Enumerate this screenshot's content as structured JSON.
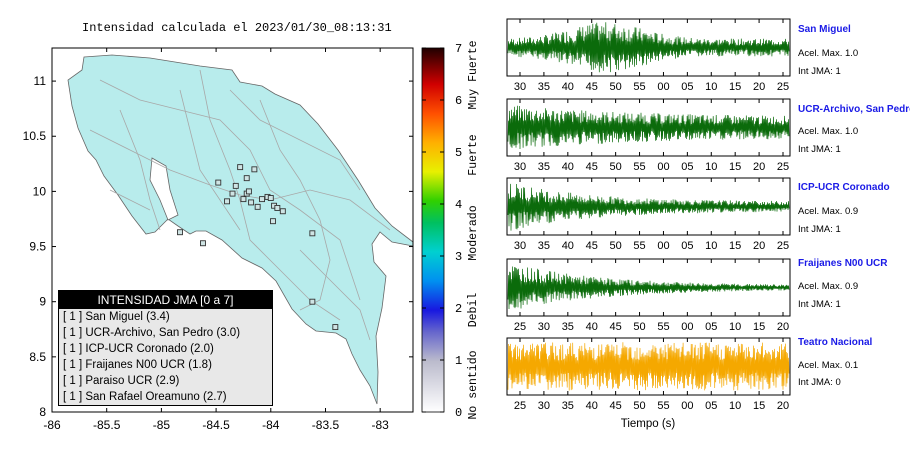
{
  "map": {
    "title": "Intensidad calculada el 2023/01/30_08:13:31",
    "x_ticks": [
      "-86",
      "-85.5",
      "-85",
      "-84.5",
      "-84",
      "-83.5",
      "-83"
    ],
    "y_ticks": [
      "11",
      "10.5",
      "10",
      "9.5",
      "9",
      "8.5",
      "8"
    ],
    "xlim": [
      -86,
      -82.7
    ],
    "ylim": [
      8,
      11.3
    ],
    "land_color": "#b8ecec",
    "station_points": [
      [
        -84.32,
        10.05
      ],
      [
        -84.22,
        9.98
      ],
      [
        -84.08,
        9.93
      ],
      [
        -84.03,
        9.95
      ],
      [
        -84.0,
        9.94
      ],
      [
        -83.97,
        9.87
      ],
      [
        -83.94,
        9.85
      ],
      [
        -83.89,
        9.82
      ],
      [
        -84.12,
        9.86
      ],
      [
        -84.18,
        9.9
      ],
      [
        -84.25,
        9.93
      ],
      [
        -84.4,
        9.91
      ],
      [
        -84.48,
        10.08
      ],
      [
        -84.22,
        10.12
      ],
      [
        -84.15,
        10.2
      ],
      [
        -84.28,
        10.22
      ],
      [
        -83.98,
        9.73
      ],
      [
        -84.62,
        9.53
      ],
      [
        -84.83,
        9.63
      ],
      [
        -83.62,
        9.62
      ],
      [
        -83.62,
        9.0
      ],
      [
        -83.41,
        8.77
      ],
      [
        -84.35,
        9.98
      ],
      [
        -84.2,
        10.0
      ]
    ]
  },
  "colorbar": {
    "ticks": [
      "0",
      "1",
      "2",
      "3",
      "4",
      "5",
      "6",
      "7"
    ],
    "labels": [
      "No sentido",
      "Debil",
      "Moderado",
      "Fuerte",
      "Muy Fuerte"
    ]
  },
  "legend": {
    "title": "INTENSIDAD JMA [0 a 7]",
    "items": [
      "[ 1 ] San Miguel (3.4)",
      "[ 1 ] UCR-Archivo, San Pedro (3.0)",
      "[ 1 ] ICP-UCR Coronado (2.0)",
      "[ 1 ] Fraijanes N00 UCR (1.8)",
      "[ 1 ] Paraiso UCR (2.9)",
      "[ 1 ] San Rafael Oreamuno (2.7)"
    ]
  },
  "stations": [
    {
      "name": "San Miguel",
      "acel": "Acel. Max. 1.0",
      "jma": "Int JMA: 1",
      "color": "#0b6b0b",
      "ticks": [
        "30",
        "35",
        "40",
        "45",
        "50",
        "55",
        "00",
        "05",
        "10",
        "15",
        "20",
        "25"
      ]
    },
    {
      "name": "UCR-Archivo, San Pedro",
      "acel": "Acel. Max. 1.0",
      "jma": "Int JMA: 1",
      "color": "#0b6b0b",
      "ticks": [
        "30",
        "35",
        "40",
        "45",
        "50",
        "55",
        "00",
        "05",
        "10",
        "15",
        "20",
        "25"
      ]
    },
    {
      "name": "ICP-UCR Coronado",
      "acel": "Acel. Max. 0.9",
      "jma": "Int JMA: 1",
      "color": "#0b6b0b",
      "ticks": [
        "30",
        "35",
        "40",
        "45",
        "50",
        "55",
        "00",
        "05",
        "10",
        "15",
        "20",
        "25"
      ]
    },
    {
      "name": "Fraijanes N00 UCR",
      "acel": "Acel. Max. 0.9",
      "jma": "Int JMA: 1",
      "color": "#0b6b0b",
      "ticks": [
        "25",
        "30",
        "35",
        "40",
        "45",
        "50",
        "55",
        "00",
        "05",
        "10",
        "15",
        "20"
      ]
    },
    {
      "name": "Teatro Nacional",
      "acel": "Acel. Max. 0.1",
      "jma": "Int JMA: 0",
      "color": "#f5a800",
      "ticks": [
        "25",
        "30",
        "35",
        "40",
        "45",
        "50",
        "55",
        "00",
        "05",
        "10",
        "15",
        "20"
      ]
    }
  ],
  "xlabel": "Tiempo (s)"
}
